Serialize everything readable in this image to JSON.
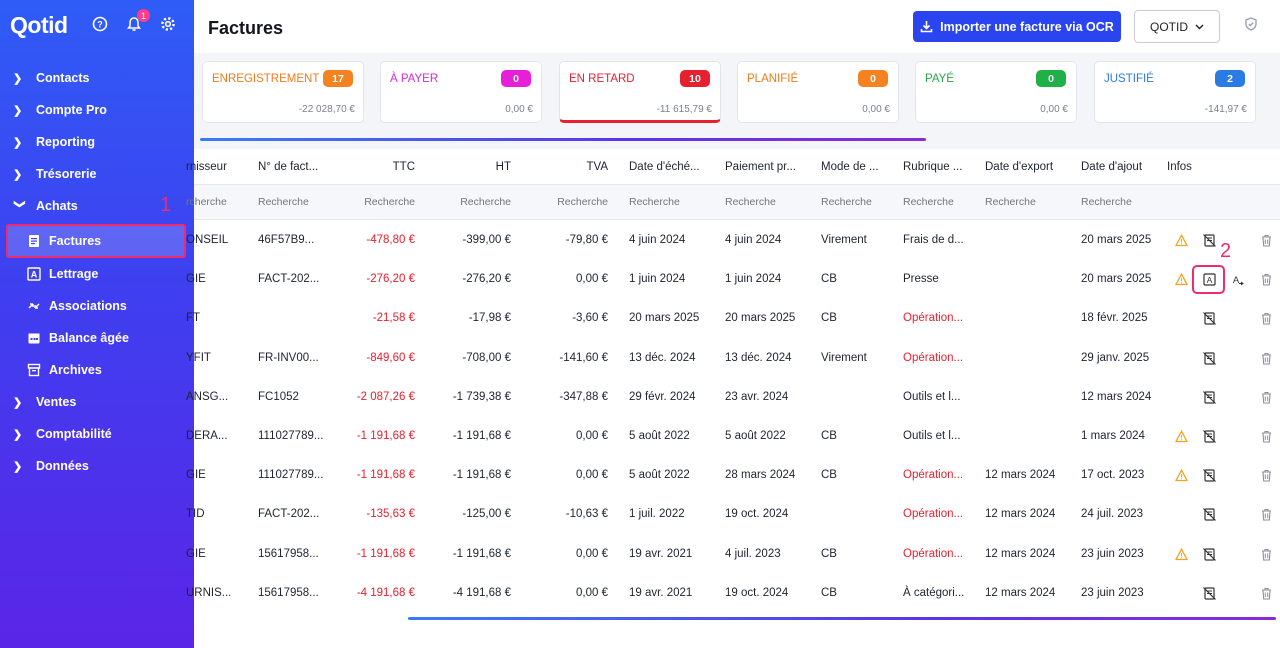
{
  "app": {
    "logo": "Qotid",
    "notif_count": "1"
  },
  "sidebar": {
    "items": [
      {
        "label": "Contacts"
      },
      {
        "label": "Compte Pro"
      },
      {
        "label": "Reporting"
      },
      {
        "label": "Trésorerie"
      },
      {
        "label": "Achats"
      }
    ],
    "sub_items": [
      {
        "label": "Factures",
        "icon": "invoice-icon"
      },
      {
        "label": "Lettrage",
        "icon": "letter-a-icon"
      },
      {
        "label": "Associations",
        "icon": "link-arrows-icon"
      },
      {
        "label": "Balance âgée",
        "icon": "calendar-icon"
      },
      {
        "label": "Archives",
        "icon": "archive-icon"
      }
    ],
    "items_after": [
      {
        "label": "Ventes"
      },
      {
        "label": "Comptabilité"
      },
      {
        "label": "Données"
      }
    ]
  },
  "header": {
    "title": "Factures",
    "ocr_button": "Importer une facture via OCR",
    "company": "QOTID"
  },
  "annotations": {
    "a1": "1",
    "a2": "2"
  },
  "status_cards": [
    {
      "label": "ENREGISTREMENT",
      "count": "17",
      "amount": "-22 028,70 €",
      "color": "#f07a1a",
      "badge": "#f58220"
    },
    {
      "label": "À PAYER",
      "count": "0",
      "amount": "0,00 €",
      "color": "#d62bd6",
      "badge": "#e81fd8"
    },
    {
      "label": "EN RETARD",
      "count": "10",
      "amount": "-11 615,79 €",
      "color": "#e7202f",
      "badge": "#e7202f"
    },
    {
      "label": "PLANIFIÉ",
      "count": "0",
      "amount": "0,00 €",
      "color": "#f07a1a",
      "badge": "#f58220"
    },
    {
      "label": "PAYÉ",
      "count": "0",
      "amount": "0,00 €",
      "color": "#2aa54a",
      "badge": "#1fb046"
    },
    {
      "label": "JUSTIFIÉ",
      "count": "2",
      "amount": "-141,97 €",
      "color": "#2a7be4",
      "badge": "#2a7be4"
    }
  ],
  "table": {
    "headers": [
      "rnisseur",
      "N° de fact...",
      "TTC",
      "HT",
      "TVA",
      "Date d'éché...",
      "Paiement pr...",
      "Mode de ...",
      "Rubrique ...",
      "Date d'export",
      "Date d'ajout",
      "Infos"
    ],
    "search_placeholder": "Recherche",
    "search_first": "rcherche",
    "rows": [
      {
        "fournisseur": "ONSEIL",
        "num": "46F57B9...",
        "ttc": "-478,80 €",
        "ht": "-399,00 €",
        "tva": "-79,80 €",
        "echeance": "4 juin 2024",
        "paiement": "4 juin 2024",
        "mode": "Virement",
        "rubrique": "Frais de d...",
        "rubrique_red": false,
        "export": "",
        "ajout": "20 mars 2025",
        "warn": true,
        "extra": false
      },
      {
        "fournisseur": "GIE",
        "num": "FACT-202...",
        "ttc": "-276,20 €",
        "ht": "-276,20 €",
        "tva": "0,00 €",
        "echeance": "1 juin 2024",
        "paiement": "1 juin 2024",
        "mode": "CB",
        "rubrique": "Presse",
        "rubrique_red": false,
        "export": "",
        "ajout": "20 mars 2025",
        "warn": true,
        "extra": true
      },
      {
        "fournisseur": "FT",
        "num": "",
        "ttc": "-21,58 €",
        "ht": "-17,98 €",
        "tva": "-3,60 €",
        "echeance": "20 mars 2025",
        "paiement": "20 mars 2025",
        "mode": "CB",
        "rubrique": "Opération...",
        "rubrique_red": true,
        "export": "",
        "ajout": "18 févr. 2025",
        "warn": false,
        "extra": false
      },
      {
        "fournisseur": "YFIT",
        "num": "FR-INV00...",
        "ttc": "-849,60 €",
        "ht": "-708,00 €",
        "tva": "-141,60 €",
        "echeance": "13 déc. 2024",
        "paiement": "13 déc. 2024",
        "mode": "Virement",
        "rubrique": "Opération...",
        "rubrique_red": true,
        "export": "",
        "ajout": "29 janv. 2025",
        "warn": false,
        "extra": false
      },
      {
        "fournisseur": "ANSG...",
        "num": "FC1052",
        "ttc": "-2 087,26 €",
        "ht": "-1 739,38 €",
        "tva": "-347,88 €",
        "echeance": "29 févr. 2024",
        "paiement": "23 avr. 2024",
        "mode": "",
        "rubrique": "Outils et l...",
        "rubrique_red": false,
        "export": "",
        "ajout": "12 mars 2024",
        "warn": false,
        "extra": false
      },
      {
        "fournisseur": "DERA...",
        "num": "111027789...",
        "ttc": "-1 191,68 €",
        "ht": "-1 191,68 €",
        "tva": "0,00 €",
        "echeance": "5 août 2022",
        "paiement": "5 août 2022",
        "mode": "CB",
        "rubrique": "Outils et l...",
        "rubrique_red": false,
        "export": "",
        "ajout": "1 mars 2024",
        "warn": true,
        "extra": false
      },
      {
        "fournisseur": "GIE",
        "num": "111027789...",
        "ttc": "-1 191,68 €",
        "ht": "-1 191,68 €",
        "tva": "0,00 €",
        "echeance": "5 août 2022",
        "paiement": "28 mars 2024",
        "mode": "CB",
        "rubrique": "Opération...",
        "rubrique_red": true,
        "export": "12 mars 2024",
        "ajout": "17 oct. 2023",
        "warn": true,
        "extra": false
      },
      {
        "fournisseur": "TID",
        "num": "FACT-202...",
        "ttc": "-135,63 €",
        "ht": "-125,00 €",
        "tva": "-10,63 €",
        "echeance": "1 juil. 2022",
        "paiement": "19 oct. 2024",
        "mode": "",
        "rubrique": "Opération...",
        "rubrique_red": true,
        "export": "12 mars 2024",
        "ajout": "24 juil. 2023",
        "warn": false,
        "extra": false
      },
      {
        "fournisseur": "GIE",
        "num": "15617958...",
        "ttc": "-1 191,68 €",
        "ht": "-1 191,68 €",
        "tva": "0,00 €",
        "echeance": "19 avr. 2021",
        "paiement": "4 juil. 2023",
        "mode": "CB",
        "rubrique": "Opération...",
        "rubrique_red": true,
        "export": "12 mars 2024",
        "ajout": "23 juin 2023",
        "warn": true,
        "extra": false
      },
      {
        "fournisseur": "URNIS...",
        "num": "15617958...",
        "ttc": "-4 191,68 €",
        "ht": "-4 191,68 €",
        "tva": "0,00 €",
        "echeance": "19 avr. 2021",
        "paiement": "19 oct. 2024",
        "mode": "CB",
        "rubrique": "À catégori...",
        "rubrique_red": false,
        "export": "12 mars 2024",
        "ajout": "23 juin 2023",
        "warn": false,
        "extra": false
      }
    ]
  }
}
